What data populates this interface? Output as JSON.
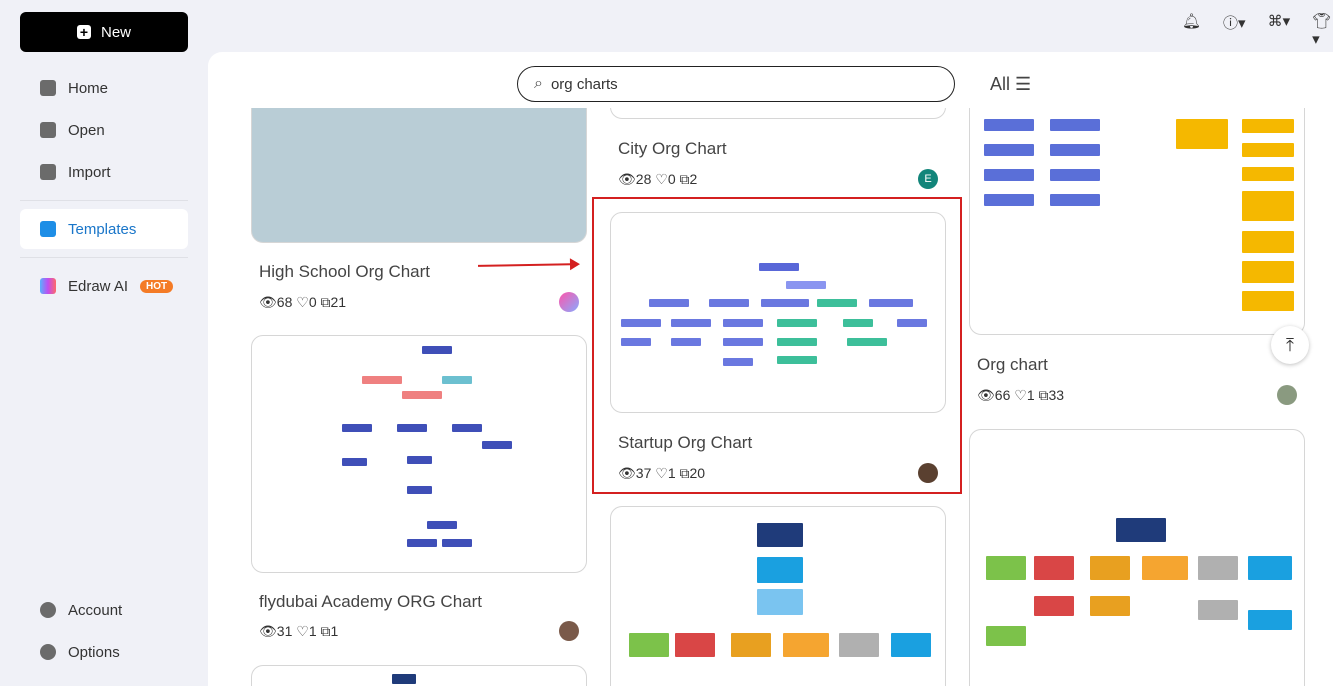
{
  "sidebar": {
    "new_label": "New",
    "items": [
      {
        "label": "Home"
      },
      {
        "label": "Open"
      },
      {
        "label": "Import"
      },
      {
        "label": "Templates"
      },
      {
        "label": "Edraw AI",
        "badge": "HOT"
      }
    ],
    "bottom": [
      {
        "label": "Account"
      },
      {
        "label": "Options"
      }
    ]
  },
  "header": {
    "icons": [
      "bell-icon",
      "help-icon",
      "apps-icon",
      "theme-icon",
      "settings-icon"
    ]
  },
  "search": {
    "value": "org charts",
    "filter": "All"
  },
  "colors": {
    "accent": "#1a76c9",
    "highlight": "#d42020",
    "hot": "#f47b26"
  },
  "cards": [
    {
      "title": "High School Org Chart",
      "views": "68",
      "likes": "0",
      "copies": "21"
    },
    {
      "title": "flydubai Academy ORG Chart",
      "views": "31",
      "likes": "1",
      "copies": "1"
    },
    {
      "title": "City Org Chart",
      "views": "28",
      "likes": "0",
      "copies": "2",
      "author": "E"
    },
    {
      "title": "Startup Org Chart",
      "views": "37",
      "likes": "1",
      "copies": "20"
    },
    {
      "title": "Org chart",
      "views": "66",
      "likes": "1",
      "copies": "33"
    }
  ]
}
